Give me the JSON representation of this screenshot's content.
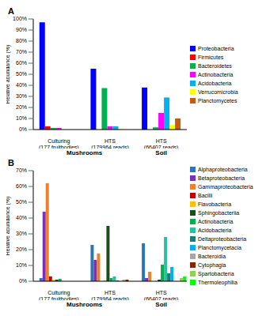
{
  "chart_data": [
    {
      "type": "bar",
      "title": "A",
      "y_label": "Relative abundance (%)",
      "categories": [
        "Culturing (177 fruitbodies)",
        "HTS (179964 reads)",
        "HTS (66407 reads)"
      ],
      "annotations": [
        "Mushrooms",
        "Soil"
      ],
      "ylim": [
        0,
        100
      ],
      "yticks": [
        {
          "value": 0,
          "label": "0%"
        },
        {
          "value": 10,
          "label": "10%"
        },
        {
          "value": 20,
          "label": "20%"
        },
        {
          "value": 30,
          "label": "30%"
        },
        {
          "value": 40,
          "label": "40%"
        },
        {
          "value": 50,
          "label": "50%"
        },
        {
          "value": 60,
          "label": "60%"
        },
        {
          "value": 70,
          "label": "70%"
        },
        {
          "value": 80,
          "label": "80%"
        },
        {
          "value": 90,
          "label": "90%"
        },
        {
          "value": 100,
          "label": "100%"
        }
      ],
      "grid": false,
      "legend": "right",
      "series": [
        {
          "name": "Proteobacteria",
          "color": "#0000FF",
          "values": [
            97,
            55,
            38
          ]
        },
        {
          "name": "Firmicutes",
          "color": "#FF0000",
          "values": [
            3,
            0,
            0
          ]
        },
        {
          "name": "Bacteroidetes",
          "color": "#00B050",
          "values": [
            1.5,
            37.5,
            2
          ]
        },
        {
          "name": "Actinobacteria",
          "color": "#FF00FF",
          "values": [
            1.5,
            3,
            15
          ]
        },
        {
          "name": "Acidobacteria",
          "color": "#00B0F0",
          "values": [
            0,
            3,
            29
          ]
        },
        {
          "name": "Verrucomicrobia",
          "color": "#FFFF00",
          "values": [
            0,
            0.5,
            4
          ]
        },
        {
          "name": "Planctomycetes",
          "color": "#C55A11",
          "values": [
            0,
            0,
            10
          ]
        }
      ]
    },
    {
      "type": "bar",
      "title": "B",
      "y_label": "Relative abundance (%)",
      "categories": [
        "Culturing (177 fruitbodies)",
        "HTS (179964 reads)",
        "HTS (66407 reads)"
      ],
      "annotations": [
        "Mushrooms",
        "Soil"
      ],
      "ylim": [
        0,
        70
      ],
      "yticks": [
        {
          "value": 0,
          "label": "0%"
        },
        {
          "value": 10,
          "label": "10%"
        },
        {
          "value": 20,
          "label": "20%"
        },
        {
          "value": 30,
          "label": "30%"
        },
        {
          "value": 40,
          "label": "40%"
        },
        {
          "value": 50,
          "label": "50%"
        },
        {
          "value": 60,
          "label": "60%"
        },
        {
          "value": 70,
          "label": "70%"
        }
      ],
      "grid": false,
      "legend": "right",
      "series": [
        {
          "name": "Alphaproteobacteria",
          "color": "#2E75B6",
          "values": [
            2,
            23,
            24
          ]
        },
        {
          "name": "Betaproteobacteria",
          "color": "#7B2FBE",
          "values": [
            44,
            13.5,
            2
          ]
        },
        {
          "name": "Gammaproteobacteria",
          "color": "#F07F2D",
          "values": [
            62,
            17.5,
            6
          ]
        },
        {
          "name": "Bacilli",
          "color": "#C00000",
          "values": [
            3,
            0,
            0
          ]
        },
        {
          "name": "Flavobacteria",
          "color": "#FFC000",
          "values": [
            1,
            0.5,
            0
          ]
        },
        {
          "name": "Sphingobacteriia",
          "color": "#1A4D1A",
          "values": [
            1,
            35,
            1
          ]
        },
        {
          "name": "Actinobacteria",
          "color": "#00B050",
          "values": [
            1.5,
            2,
            10.5
          ]
        },
        {
          "name": "Acidobacteria",
          "color": "#2DBE9F",
          "values": [
            0,
            3,
            28
          ]
        },
        {
          "name": "Deltaproteobacteria",
          "color": "#1F7A7A",
          "values": [
            0,
            0.5,
            5
          ]
        },
        {
          "name": "Planctomycetacia",
          "color": "#00B0F0",
          "values": [
            0,
            0,
            9
          ]
        },
        {
          "name": "Bacteroidia",
          "color": "#A6A6A6",
          "values": [
            0,
            1,
            0
          ]
        },
        {
          "name": "Cytophagia",
          "color": "#8B2500",
          "values": [
            0,
            1,
            0
          ]
        },
        {
          "name": "Spartobacteria",
          "color": "#92D050",
          "values": [
            0,
            0,
            2
          ]
        },
        {
          "name": "Thermoleophilia",
          "color": "#00FF00",
          "values": [
            0,
            0,
            3
          ]
        }
      ]
    }
  ]
}
